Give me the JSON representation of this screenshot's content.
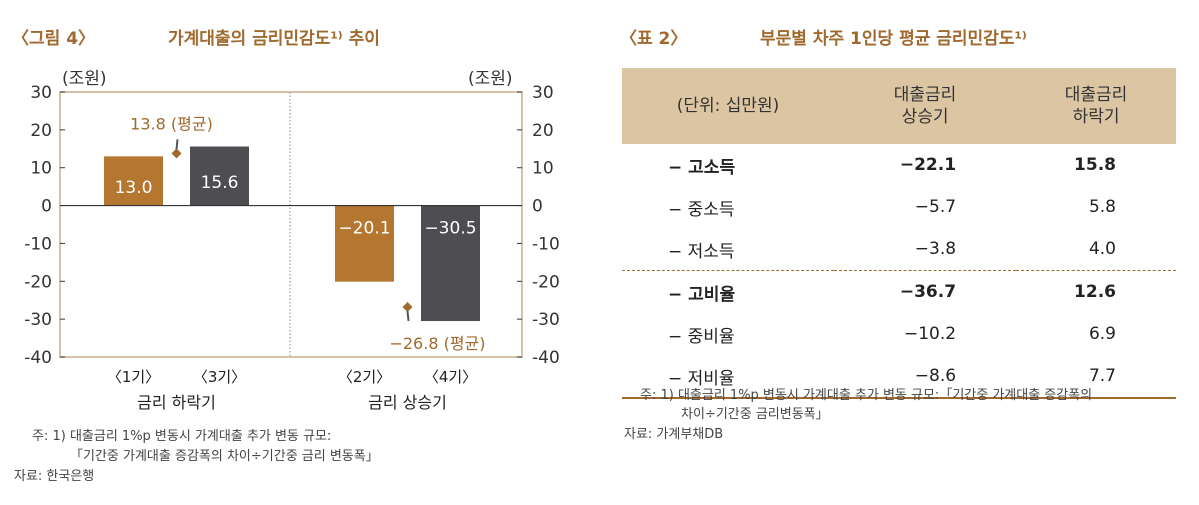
{
  "figure": {
    "label": "〈그림 4〉",
    "title": "가계대출의 금리민감도¹⁾ 추이",
    "unit_left": "(조원)",
    "unit_right": "(조원)",
    "notes": [
      "주: 1) 대출금리 1%p 변동시 가계대출 추가 변동 규모:",
      "「기간중 가계대출 증감폭의 차이÷기간중 금리 변동폭」",
      "자료: 한국은행"
    ]
  },
  "chart_data": {
    "type": "bar",
    "ylim": [
      -40,
      30
    ],
    "yticks": [
      "30",
      "20",
      "10",
      "0",
      "-10",
      "-20",
      "-30",
      "-40"
    ],
    "groups": [
      {
        "name": "금리 하락기",
        "categories": [
          "〈1기〉",
          "〈3기〉"
        ],
        "values": [
          13.0,
          15.6
        ],
        "labels": [
          "13.0",
          "15.6"
        ],
        "average": 13.8,
        "average_label": "13.8 (평균)"
      },
      {
        "name": "금리 상승기",
        "categories": [
          "〈2기〉",
          "〈4기〉"
        ],
        "values": [
          -20.1,
          -30.5
        ],
        "labels": [
          "−20.1",
          "−30.5"
        ],
        "average": -26.8,
        "average_label": "−26.8 (평균)"
      }
    ],
    "colors": {
      "odd": "#b5762f",
      "even": "#4e4d52",
      "average": "#a0692e"
    }
  },
  "table": {
    "label": "〈표 2〉",
    "title": "부문별 차주 1인당 평균 금리민감도¹⁾",
    "headers": [
      "(단위: 십만원)",
      "대출금리\n상승기",
      "대출금리\n하락기"
    ],
    "rows": [
      [
        "− 고소득",
        "−22.1",
        "15.8",
        true
      ],
      [
        "− 중소득",
        "−5.7",
        "5.8",
        false
      ],
      [
        "− 저소득",
        "−3.8",
        "4.0",
        false
      ],
      [
        "− 고비율",
        "−36.7",
        "12.6",
        true
      ],
      [
        "− 중비율",
        "−10.2",
        "6.9",
        false
      ],
      [
        "− 저비율",
        "−8.6",
        "7.7",
        false
      ]
    ],
    "notes": [
      "주: 1) 대출금리 1%p 변동시 가계대출 추가 변동 규모:「기간중 가계대출 증감폭의",
      "차이÷기간중 금리변동폭」",
      "자료: 가계부채DB"
    ]
  }
}
